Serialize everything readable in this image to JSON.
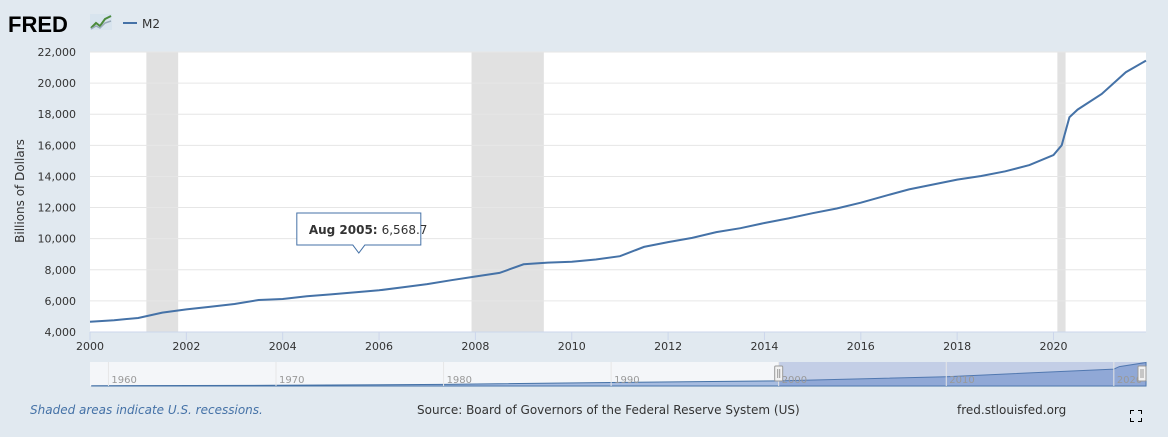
{
  "header": {
    "logo_text": "FRED",
    "legend_label": "M2"
  },
  "colors": {
    "background": "#e1e9f0",
    "plot_background": "#ffffff",
    "series": "#4572a7",
    "recession": "#e1e1e1",
    "navigator_mask": "#aabbdd"
  },
  "chart_data": {
    "type": "line",
    "title": "M2",
    "xlabel": "",
    "ylabel": "Billions of Dollars",
    "xlim": [
      2000.0,
      2021.92
    ],
    "ylim": [
      4000,
      22000
    ],
    "x_ticks": [
      "2000",
      "2002",
      "2004",
      "2006",
      "2008",
      "2010",
      "2012",
      "2014",
      "2016",
      "2018",
      "2020"
    ],
    "y_ticks": [
      "4,000",
      "6,000",
      "8,000",
      "10,000",
      "12,000",
      "14,000",
      "16,000",
      "18,000",
      "20,000",
      "22,000"
    ],
    "recessions": [
      [
        2001.17,
        2001.83
      ],
      [
        2007.92,
        2009.42
      ],
      [
        2020.08,
        2020.25
      ]
    ],
    "series": [
      {
        "name": "M2",
        "points": [
          [
            2000.0,
            4660
          ],
          [
            2000.5,
            4760
          ],
          [
            2001.0,
            4900
          ],
          [
            2001.5,
            5250
          ],
          [
            2002.0,
            5450
          ],
          [
            2002.5,
            5620
          ],
          [
            2003.0,
            5800
          ],
          [
            2003.5,
            6060
          ],
          [
            2004.0,
            6120
          ],
          [
            2004.5,
            6300
          ],
          [
            2005.0,
            6420
          ],
          [
            2005.58,
            6568.7
          ],
          [
            2006.0,
            6680
          ],
          [
            2006.5,
            6880
          ],
          [
            2007.0,
            7080
          ],
          [
            2007.5,
            7330
          ],
          [
            2008.0,
            7570
          ],
          [
            2008.5,
            7800
          ],
          [
            2009.0,
            8350
          ],
          [
            2009.5,
            8460
          ],
          [
            2010.0,
            8520
          ],
          [
            2010.5,
            8660
          ],
          [
            2011.0,
            8870
          ],
          [
            2011.5,
            9470
          ],
          [
            2012.0,
            9780
          ],
          [
            2012.5,
            10050
          ],
          [
            2013.0,
            10420
          ],
          [
            2013.5,
            10670
          ],
          [
            2014.0,
            11010
          ],
          [
            2014.5,
            11300
          ],
          [
            2015.0,
            11640
          ],
          [
            2015.5,
            11940
          ],
          [
            2016.0,
            12310
          ],
          [
            2016.5,
            12750
          ],
          [
            2017.0,
            13170
          ],
          [
            2017.5,
            13480
          ],
          [
            2018.0,
            13800
          ],
          [
            2018.5,
            14030
          ],
          [
            2019.0,
            14330
          ],
          [
            2019.5,
            14730
          ],
          [
            2020.0,
            15380
          ],
          [
            2020.17,
            16000
          ],
          [
            2020.33,
            17800
          ],
          [
            2020.5,
            18300
          ],
          [
            2021.0,
            19300
          ],
          [
            2021.5,
            20700
          ],
          [
            2021.92,
            21450
          ]
        ]
      }
    ],
    "tooltip": {
      "date": "Aug 2005:",
      "value": "6,568.7",
      "x": 2005.58
    },
    "navigator": {
      "x_ticks": [
        "1960",
        "1970",
        "1980",
        "1990",
        "2000",
        "2010",
        "2020"
      ],
      "xlim": [
        1958.9,
        2021.92
      ],
      "selection": [
        2000.0,
        2021.92
      ],
      "series": [
        [
          1959.0,
          300
        ],
        [
          1970.0,
          600
        ],
        [
          1980.0,
          1500
        ],
        [
          1990.0,
          3200
        ],
        [
          2000.0,
          4700
        ],
        [
          2010.0,
          8500
        ],
        [
          2020.0,
          15500
        ],
        [
          2020.33,
          17800
        ],
        [
          2021.92,
          21500
        ]
      ],
      "ylim": [
        0,
        22000
      ]
    }
  },
  "footer": {
    "recession_note": "Shaded areas indicate U.S. recessions.",
    "source": "Source: Board of Governors of the Federal Reserve System (US)",
    "site": "fred.stlouisfed.org"
  }
}
